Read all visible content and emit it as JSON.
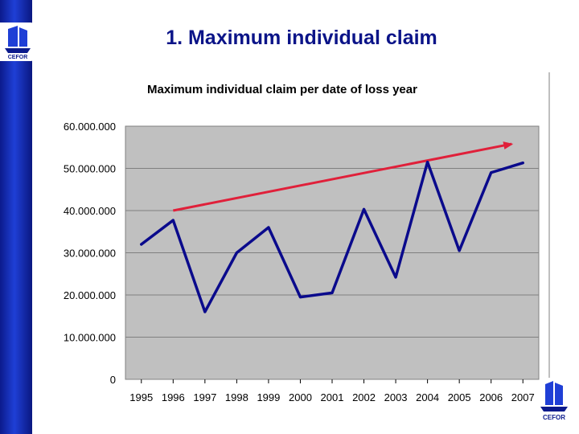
{
  "slide": {
    "title": "1. Maximum individual claim"
  },
  "colors": {
    "left_bar": "#1f3fd6",
    "title": "#0b1488",
    "plot_bg": "#c0c0c0",
    "grid": "#808080",
    "series_line": "#0a0a8c",
    "trend_arrow": "#e0203a"
  },
  "icons": {
    "top_logo": "ship-logo-icon",
    "corner_logo": "ship-logo-icon"
  },
  "chart_data": {
    "type": "line",
    "title": "Maximum individual claim per date of loss year",
    "xlabel": "",
    "ylabel": "",
    "x": [
      "1995",
      "1996",
      "1997",
      "1998",
      "1999",
      "2000",
      "2001",
      "2002",
      "2003",
      "2004",
      "2005",
      "2006",
      "2007"
    ],
    "series": [
      {
        "values": [
          32000000,
          37700000,
          16000000,
          30000000,
          36000000,
          19500000,
          20500000,
          40300000,
          24200000,
          51500000,
          30500000,
          49000000,
          51300000
        ]
      }
    ],
    "trend_arrow": {
      "from": {
        "x": "1996",
        "y": 40000000
      },
      "to": {
        "x": "2007",
        "y": 55800000
      }
    },
    "ylim": [
      0,
      60000000
    ],
    "y_ticks": [
      {
        "value": 0,
        "label": "0"
      },
      {
        "value": 10000000,
        "label": "10.000.000"
      },
      {
        "value": 20000000,
        "label": "20.000.000"
      },
      {
        "value": 30000000,
        "label": "30.000.000"
      },
      {
        "value": 40000000,
        "label": "40.000.000"
      },
      {
        "value": 50000000,
        "label": "50.000.000"
      },
      {
        "value": 60000000,
        "label": "60.000.000"
      }
    ],
    "grid": true,
    "legend": "none"
  }
}
